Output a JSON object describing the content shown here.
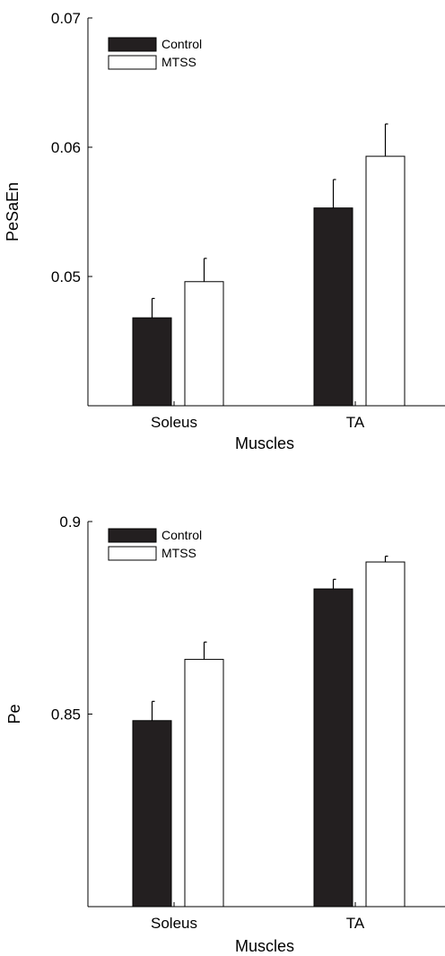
{
  "chart_data": [
    {
      "type": "bar",
      "categories": [
        "Soleus",
        "TA"
      ],
      "xlabel": "Muscles",
      "ylabel": "PeSaEn",
      "ylim": [
        0.04,
        0.07
      ],
      "yticks": [
        "0.05",
        "0.06",
        "0.07"
      ],
      "ytick_values": [
        0.05,
        0.06,
        0.07
      ],
      "legend_position": "top-left",
      "grid": false,
      "series": [
        {
          "name": "Control",
          "color": "#231f20",
          "values": [
            0.0468,
            0.0553
          ],
          "errors": [
            0.0015,
            0.0022
          ]
        },
        {
          "name": "MTSS",
          "color": "#ffffff",
          "values": [
            0.0496,
            0.0593
          ],
          "errors": [
            0.0018,
            0.0025
          ]
        }
      ]
    },
    {
      "type": "bar",
      "categories": [
        "Soleus",
        "TA"
      ],
      "xlabel": "Muscles",
      "ylabel": "Pe",
      "ylim": [
        0.8,
        0.9
      ],
      "yticks": [
        "0.85",
        "0.9"
      ],
      "ytick_values": [
        0.85,
        0.9
      ],
      "legend_position": "top-left",
      "grid": false,
      "series": [
        {
          "name": "Control",
          "color": "#231f20",
          "values": [
            0.8483,
            0.8825
          ],
          "errors": [
            0.005,
            0.0025
          ]
        },
        {
          "name": "MTSS",
          "color": "#ffffff",
          "values": [
            0.8642,
            0.8895
          ],
          "errors": [
            0.0045,
            0.0015
          ]
        }
      ]
    }
  ]
}
